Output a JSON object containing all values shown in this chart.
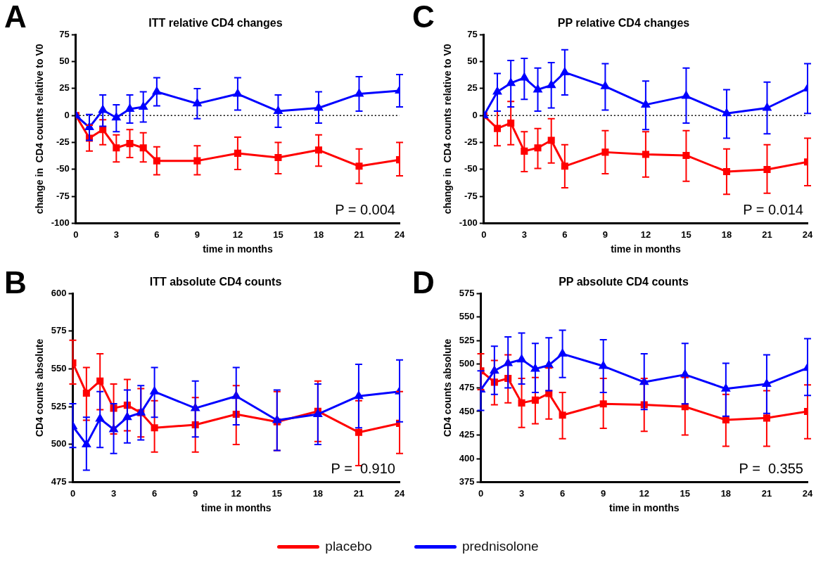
{
  "chart_data": [
    {
      "type": "line",
      "title": "ITT relative CD4 changes",
      "xlabel": "time in months",
      "ylabel": "change in  CD4 counts relative to V0",
      "annotations": [
        "A",
        "P = 0.004"
      ],
      "x": [
        0,
        1,
        2,
        3,
        4,
        5,
        6,
        9,
        12,
        15,
        18,
        21,
        24
      ],
      "xlim": [
        0,
        24
      ],
      "xticks": [
        0,
        3,
        6,
        9,
        12,
        15,
        18,
        21,
        24
      ],
      "ylim": [
        -100,
        75
      ],
      "yticks": [
        -100,
        -75,
        -50,
        -25,
        0,
        25,
        50,
        75
      ],
      "grid": false,
      "legend": "bottom",
      "ref_lines": [
        {
          "axis": "y",
          "value": 0,
          "line_style": "dotted",
          "color": "#000000"
        }
      ],
      "series": [
        {
          "name": "placebo",
          "color": "#ff0000",
          "marker": "square",
          "values": [
            0,
            -21,
            -13,
            -30,
            -26,
            -30,
            -42,
            -42,
            -35,
            -39,
            -32,
            -47,
            -41
          ],
          "errors": [
            null,
            [
              -33,
              -9
            ],
            [
              -27,
              -4
            ],
            [
              -43,
              -18
            ],
            [
              -39,
              -13
            ],
            [
              -43,
              -16
            ],
            [
              -55,
              -29
            ],
            [
              -55,
              -28
            ],
            [
              -50,
              -20
            ],
            [
              -54,
              -25
            ],
            [
              -47,
              -18
            ],
            [
              -63,
              -31
            ],
            [
              -56,
              -25
            ]
          ]
        },
        {
          "name": "prednisolone",
          "color": "#0000ff",
          "marker": "triangle",
          "values": [
            0,
            -11,
            5,
            -2,
            6,
            8,
            22,
            11,
            20,
            4,
            7,
            20,
            23
          ],
          "errors": [
            null,
            [
              -23,
              1
            ],
            [
              -10,
              19
            ],
            [
              -15,
              10
            ],
            [
              -7,
              19
            ],
            [
              -6,
              22
            ],
            [
              9,
              35
            ],
            [
              -3,
              25
            ],
            [
              5,
              35
            ],
            [
              -11,
              19
            ],
            [
              -7,
              22
            ],
            [
              4,
              36
            ],
            [
              8,
              38
            ]
          ]
        }
      ]
    },
    {
      "type": "line",
      "title": "PP relative CD4 changes",
      "xlabel": "time in months",
      "ylabel": "change in  CD4 counts relative to V0",
      "annotations": [
        "C",
        "P = 0.014"
      ],
      "x": [
        0,
        1,
        2,
        3,
        4,
        5,
        6,
        9,
        12,
        15,
        18,
        21,
        24
      ],
      "xlim": [
        0,
        24
      ],
      "xticks": [
        0,
        3,
        6,
        9,
        12,
        15,
        18,
        21,
        24
      ],
      "ylim": [
        -100,
        75
      ],
      "yticks": [
        -100,
        -75,
        -50,
        -25,
        0,
        25,
        50,
        75
      ],
      "grid": false,
      "ref_lines": [
        {
          "axis": "y",
          "value": 0,
          "line_style": "dotted",
          "color": "#000000"
        }
      ],
      "series": [
        {
          "color": "#ff0000",
          "marker": "square",
          "values": [
            0,
            -12,
            -7,
            -33,
            -30,
            -23,
            -47,
            -34,
            -36,
            -37,
            -52,
            -50,
            -43
          ],
          "errors": [
            null,
            [
              -28,
              4
            ],
            [
              -27,
              13
            ],
            [
              -52,
              -15
            ],
            [
              -49,
              -12
            ],
            [
              -44,
              -3
            ],
            [
              -67,
              -27
            ],
            [
              -54,
              -14
            ],
            [
              -57,
              -15
            ],
            [
              -61,
              -14
            ],
            [
              -73,
              -31
            ],
            [
              -72,
              -27
            ],
            [
              -65,
              -21
            ]
          ]
        },
        {
          "color": "#0000ff",
          "marker": "triangle",
          "values": [
            0,
            22,
            30,
            35,
            24,
            28,
            40,
            27,
            10,
            18,
            2,
            7,
            25
          ],
          "errors": [
            null,
            [
              4,
              39
            ],
            [
              8,
              51
            ],
            [
              15,
              53
            ],
            [
              4,
              44
            ],
            [
              7,
              49
            ],
            [
              19,
              61
            ],
            [
              5,
              48
            ],
            [
              -13,
              32
            ],
            [
              -7,
              44
            ],
            [
              -21,
              24
            ],
            [
              -17,
              31
            ],
            [
              2,
              48
            ]
          ]
        }
      ]
    },
    {
      "type": "line",
      "title": "ITT absolute CD4 counts",
      "xlabel": "time in months",
      "ylabel": "CD4 counts absolute",
      "annotations": [
        "B",
        "P =  0.910"
      ],
      "x": [
        0,
        1,
        2,
        3,
        4,
        5,
        6,
        9,
        12,
        15,
        18,
        21,
        24
      ],
      "xlim": [
        0,
        24
      ],
      "xticks": [
        0,
        3,
        6,
        9,
        12,
        15,
        18,
        21,
        24
      ],
      "ylim": [
        475,
        600
      ],
      "yticks": [
        475,
        500,
        525,
        550,
        575,
        600
      ],
      "grid": false,
      "series": [
        {
          "color": "#ff0000",
          "marker": "square",
          "values": [
            554,
            534,
            542,
            524,
            526,
            521,
            511,
            513,
            520,
            515,
            522,
            508,
            514
          ],
          "errors": [
            [
              540,
              569
            ],
            [
              516,
              551
            ],
            [
              523,
              560
            ],
            [
              507,
              540
            ],
            [
              509,
              543
            ],
            [
              505,
              537
            ],
            [
              495,
              529
            ],
            [
              495,
              531
            ],
            [
              500,
              539
            ],
            [
              496,
              535
            ],
            [
              502,
              542
            ],
            [
              486,
              529
            ],
            [
              494,
              535
            ]
          ]
        },
        {
          "color": "#0000ff",
          "marker": "triangle",
          "values": [
            512,
            500,
            517,
            510,
            518,
            521,
            535,
            524,
            532,
            516,
            520,
            532,
            535
          ],
          "errors": [
            [
              498,
              527
            ],
            [
              483,
              518
            ],
            [
              498,
              535
            ],
            [
              494,
              527
            ],
            [
              501,
              536
            ],
            [
              503,
              539
            ],
            [
              518,
              551
            ],
            [
              505,
              542
            ],
            [
              513,
              551
            ],
            [
              496,
              536
            ],
            [
              500,
              540
            ],
            [
              511,
              553
            ],
            [
              515,
              556
            ]
          ]
        }
      ]
    },
    {
      "type": "line",
      "title": "PP absolute CD4 counts",
      "xlabel": "time in months",
      "ylabel": "CD4 counts absolute",
      "annotations": [
        "D",
        "P =  0.355"
      ],
      "x": [
        0,
        1,
        2,
        3,
        4,
        5,
        6,
        9,
        12,
        15,
        18,
        21,
        24
      ],
      "xlim": [
        0,
        24
      ],
      "xticks": [
        0,
        3,
        6,
        9,
        12,
        15,
        18,
        21,
        24
      ],
      "ylim": [
        375,
        575
      ],
      "yticks": [
        375,
        400,
        425,
        450,
        475,
        500,
        525,
        550,
        575
      ],
      "grid": false,
      "series": [
        {
          "color": "#ff0000",
          "marker": "square",
          "values": [
            493,
            481,
            485,
            459,
            462,
            469,
            446,
            458,
            457,
            455,
            441,
            443,
            450
          ],
          "errors": [
            [
              473,
              511
            ],
            [
              457,
              504
            ],
            [
              459,
              510
            ],
            [
              433,
              485
            ],
            [
              437,
              486
            ],
            [
              442,
              496
            ],
            [
              421,
              470
            ],
            [
              432,
              485
            ],
            [
              429,
              485
            ],
            [
              425,
              486
            ],
            [
              413,
              468
            ],
            [
              413,
              472
            ],
            [
              421,
              478
            ]
          ]
        },
        {
          "color": "#0000ff",
          "marker": "triangle",
          "values": [
            473,
            493,
            501,
            505,
            495,
            499,
            511,
            498,
            481,
            489,
            474,
            479,
            496
          ],
          "errors": [
            [
              451,
              493
            ],
            [
              468,
              519
            ],
            [
              475,
              529
            ],
            [
              479,
              533
            ],
            [
              470,
              522
            ],
            [
              472,
              528
            ],
            [
              486,
              536
            ],
            [
              470,
              526
            ],
            [
              452,
              511
            ],
            [
              458,
              522
            ],
            [
              445,
              501
            ],
            [
              448,
              510
            ],
            [
              467,
              527
            ]
          ]
        }
      ]
    }
  ]
}
